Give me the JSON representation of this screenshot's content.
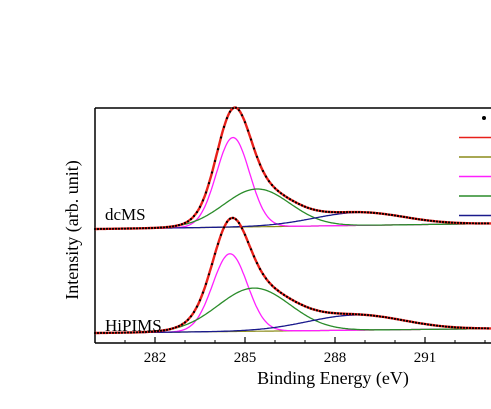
{
  "chart_data": {
    "type": "line",
    "xlabel": "Binding Energy (eV)",
    "ylabel": "Intensity (arb. unit)",
    "xlim": [
      280,
      293.2
    ],
    "xticks": [
      282,
      285,
      288,
      291
    ],
    "x_tick_labels": [
      "282",
      "285",
      "288",
      "291"
    ],
    "grid": false,
    "legend": {
      "position": "top-right",
      "entries": [
        {
          "marker": "dot",
          "color": "#000000",
          "label": ""
        },
        {
          "marker": "line",
          "color": "#e8201a",
          "label": ""
        },
        {
          "marker": "line",
          "color": "#8c8c1a",
          "label": ""
        },
        {
          "marker": "line",
          "color": "#ff20ff",
          "label": ""
        },
        {
          "marker": "line",
          "color": "#2a8c2a",
          "label": ""
        },
        {
          "marker": "line",
          "color": "#1a1a8c",
          "label": ""
        }
      ]
    },
    "panels": [
      {
        "label": "dcMS",
        "peaks": [
          {
            "center": 284.6,
            "height": 0.83,
            "width": 0.55,
            "color": "#ff20ff"
          },
          {
            "center": 285.4,
            "height": 0.35,
            "width": 1.1,
            "color": "#2a8c2a"
          },
          {
            "center": 288.8,
            "height": 0.12,
            "width": 1.5,
            "color": "#1a1a8c"
          }
        ],
        "background": {
          "start": 0.0,
          "end": 0.05,
          "color": "#8c8c1a"
        }
      },
      {
        "label": "HiPIMS",
        "peaks": [
          {
            "center": 284.5,
            "height": 0.72,
            "width": 0.58,
            "color": "#ff20ff"
          },
          {
            "center": 285.3,
            "height": 0.4,
            "width": 1.2,
            "color": "#2a8c2a"
          },
          {
            "center": 288.7,
            "height": 0.14,
            "width": 1.6,
            "color": "#1a1a8c"
          }
        ],
        "background": {
          "start": 0.0,
          "end": 0.04,
          "color": "#8c8c1a"
        }
      }
    ],
    "envelope_color": "#e8201a",
    "data_point_color": "#000000"
  }
}
